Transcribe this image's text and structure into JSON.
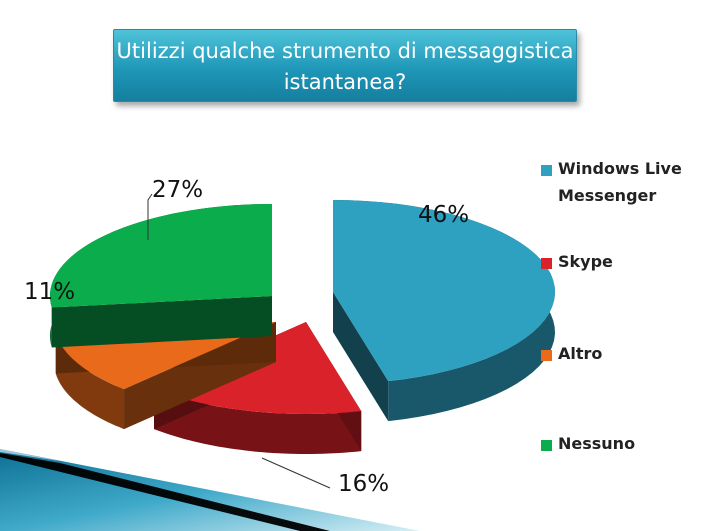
{
  "title": "Utilizzi qualche strumento di messaggistica istantanea?",
  "colors": {
    "title_bg": "#1f97b8",
    "Windows Live Messenger": "#2ea0c0",
    "Skype": "#d9222a",
    "Altro": "#e86a1a",
    "Nessuno": "#0aac4c"
  },
  "chart_data": {
    "type": "pie",
    "title": "Utilizzi qualche strumento di messaggistica istantanea?",
    "categories": [
      "Windows Live Messenger",
      "Skype",
      "Altro",
      "Nessuno"
    ],
    "values": [
      46,
      16,
      11,
      27
    ],
    "data_labels": [
      "46%",
      "16%",
      "11%",
      "27%"
    ],
    "legend": {
      "position": "right",
      "entries": [
        "Windows Live Messenger",
        "Skype",
        "Altro",
        "Nessuno"
      ]
    },
    "style": "3d-exploded"
  }
}
